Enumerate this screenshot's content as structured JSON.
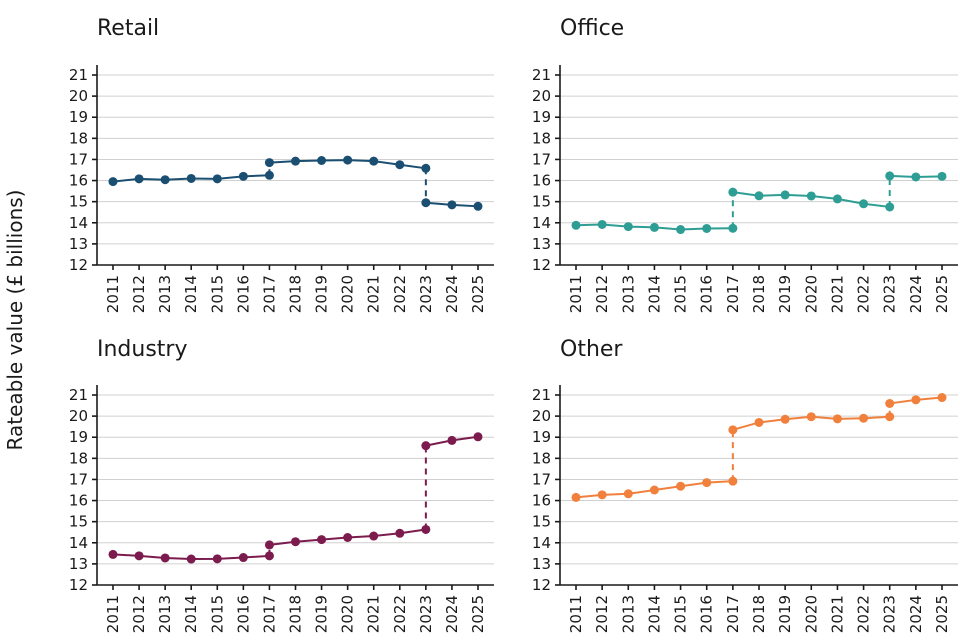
{
  "ylabel": "Rateable value (£ billions)",
  "colors": {
    "retail": "#1b4f72",
    "office": "#2e9e94",
    "industry": "#7b1b4e",
    "other": "#f0803c"
  },
  "chart_data": [
    {
      "type": "line",
      "title": "Retail",
      "color": "#1b4f72",
      "xlabel": "",
      "ylabel": "Rateable value (£ billions)",
      "ylim": [
        12,
        21
      ],
      "yticks": [
        12,
        13,
        14,
        15,
        16,
        17,
        18,
        19,
        20,
        21
      ],
      "x": [
        "2011",
        "2012",
        "2013",
        "2014",
        "2015",
        "2016",
        "2017",
        "2018",
        "2019",
        "2020",
        "2021",
        "2022",
        "2023",
        "2024",
        "2025"
      ],
      "segments": [
        {
          "x": [
            "2011",
            "2012",
            "2013",
            "2014",
            "2015",
            "2016",
            "2017"
          ],
          "y": [
            15.95,
            16.08,
            16.04,
            16.1,
            16.08,
            16.2,
            16.25
          ]
        },
        {
          "x": [
            "2017",
            "2018",
            "2019",
            "2020",
            "2021",
            "2022",
            "2023"
          ],
          "y": [
            16.85,
            16.92,
            16.95,
            16.97,
            16.92,
            16.75,
            16.58
          ]
        },
        {
          "x": [
            "2023",
            "2024",
            "2025"
          ],
          "y": [
            14.95,
            14.85,
            14.78
          ]
        }
      ],
      "revaluations": [
        {
          "x": "2017",
          "from": 16.25,
          "to": 16.85
        },
        {
          "x": "2023",
          "from": 16.58,
          "to": 14.95
        }
      ],
      "grid": true
    },
    {
      "type": "line",
      "title": "Office",
      "color": "#2e9e94",
      "xlabel": "",
      "ylabel": "Rateable value (£ billions)",
      "ylim": [
        12,
        21
      ],
      "yticks": [
        12,
        13,
        14,
        15,
        16,
        17,
        18,
        19,
        20,
        21
      ],
      "x": [
        "2011",
        "2012",
        "2013",
        "2014",
        "2015",
        "2016",
        "2017",
        "2018",
        "2019",
        "2020",
        "2021",
        "2022",
        "2023",
        "2024",
        "2025"
      ],
      "segments": [
        {
          "x": [
            "2011",
            "2012",
            "2013",
            "2014",
            "2015",
            "2016",
            "2017"
          ],
          "y": [
            13.88,
            13.92,
            13.82,
            13.78,
            13.68,
            13.73,
            13.74
          ]
        },
        {
          "x": [
            "2017",
            "2018",
            "2019",
            "2020",
            "2021",
            "2022",
            "2023"
          ],
          "y": [
            15.45,
            15.28,
            15.32,
            15.27,
            15.13,
            14.9,
            14.75
          ]
        },
        {
          "x": [
            "2023",
            "2024",
            "2025"
          ],
          "y": [
            16.22,
            16.17,
            16.2
          ]
        }
      ],
      "revaluations": [
        {
          "x": "2017",
          "from": 13.74,
          "to": 15.45
        },
        {
          "x": "2023",
          "from": 14.75,
          "to": 16.22
        }
      ],
      "grid": true
    },
    {
      "type": "line",
      "title": "Industry",
      "color": "#7b1b4e",
      "xlabel": "",
      "ylabel": "Rateable value (£ billions)",
      "ylim": [
        12,
        21
      ],
      "yticks": [
        12,
        13,
        14,
        15,
        16,
        17,
        18,
        19,
        20,
        21
      ],
      "x": [
        "2011",
        "2012",
        "2013",
        "2014",
        "2015",
        "2016",
        "2017",
        "2018",
        "2019",
        "2020",
        "2021",
        "2022",
        "2023",
        "2024",
        "2025"
      ],
      "segments": [
        {
          "x": [
            "2011",
            "2012",
            "2013",
            "2014",
            "2015",
            "2016",
            "2017"
          ],
          "y": [
            13.45,
            13.38,
            13.28,
            13.23,
            13.24,
            13.3,
            13.38
          ]
        },
        {
          "x": [
            "2017",
            "2018",
            "2019",
            "2020",
            "2021",
            "2022",
            "2023"
          ],
          "y": [
            13.9,
            14.05,
            14.15,
            14.25,
            14.32,
            14.45,
            14.63
          ]
        },
        {
          "x": [
            "2023",
            "2024",
            "2025"
          ],
          "y": [
            18.6,
            18.85,
            19.02
          ]
        }
      ],
      "revaluations": [
        {
          "x": "2017",
          "from": 13.38,
          "to": 13.9
        },
        {
          "x": "2023",
          "from": 14.63,
          "to": 18.6
        }
      ],
      "grid": true
    },
    {
      "type": "line",
      "title": "Other",
      "color": "#f0803c",
      "xlabel": "",
      "ylabel": "Rateable value (£ billions)",
      "ylim": [
        12,
        21
      ],
      "yticks": [
        12,
        13,
        14,
        15,
        16,
        17,
        18,
        19,
        20,
        21
      ],
      "x": [
        "2011",
        "2012",
        "2013",
        "2014",
        "2015",
        "2016",
        "2017",
        "2018",
        "2019",
        "2020",
        "2021",
        "2022",
        "2023",
        "2024",
        "2025"
      ],
      "segments": [
        {
          "x": [
            "2011",
            "2012",
            "2013",
            "2014",
            "2015",
            "2016",
            "2017"
          ],
          "y": [
            16.15,
            16.27,
            16.32,
            16.5,
            16.68,
            16.85,
            16.92
          ]
        },
        {
          "x": [
            "2017",
            "2018",
            "2019",
            "2020",
            "2021",
            "2022",
            "2023"
          ],
          "y": [
            19.35,
            19.7,
            19.85,
            19.97,
            19.87,
            19.9,
            19.97
          ]
        },
        {
          "x": [
            "2023",
            "2024",
            "2025"
          ],
          "y": [
            20.6,
            20.77,
            20.88
          ]
        }
      ],
      "revaluations": [
        {
          "x": "2017",
          "from": 16.92,
          "to": 19.35
        },
        {
          "x": "2023",
          "from": 19.97,
          "to": 20.6
        }
      ],
      "grid": true
    }
  ]
}
